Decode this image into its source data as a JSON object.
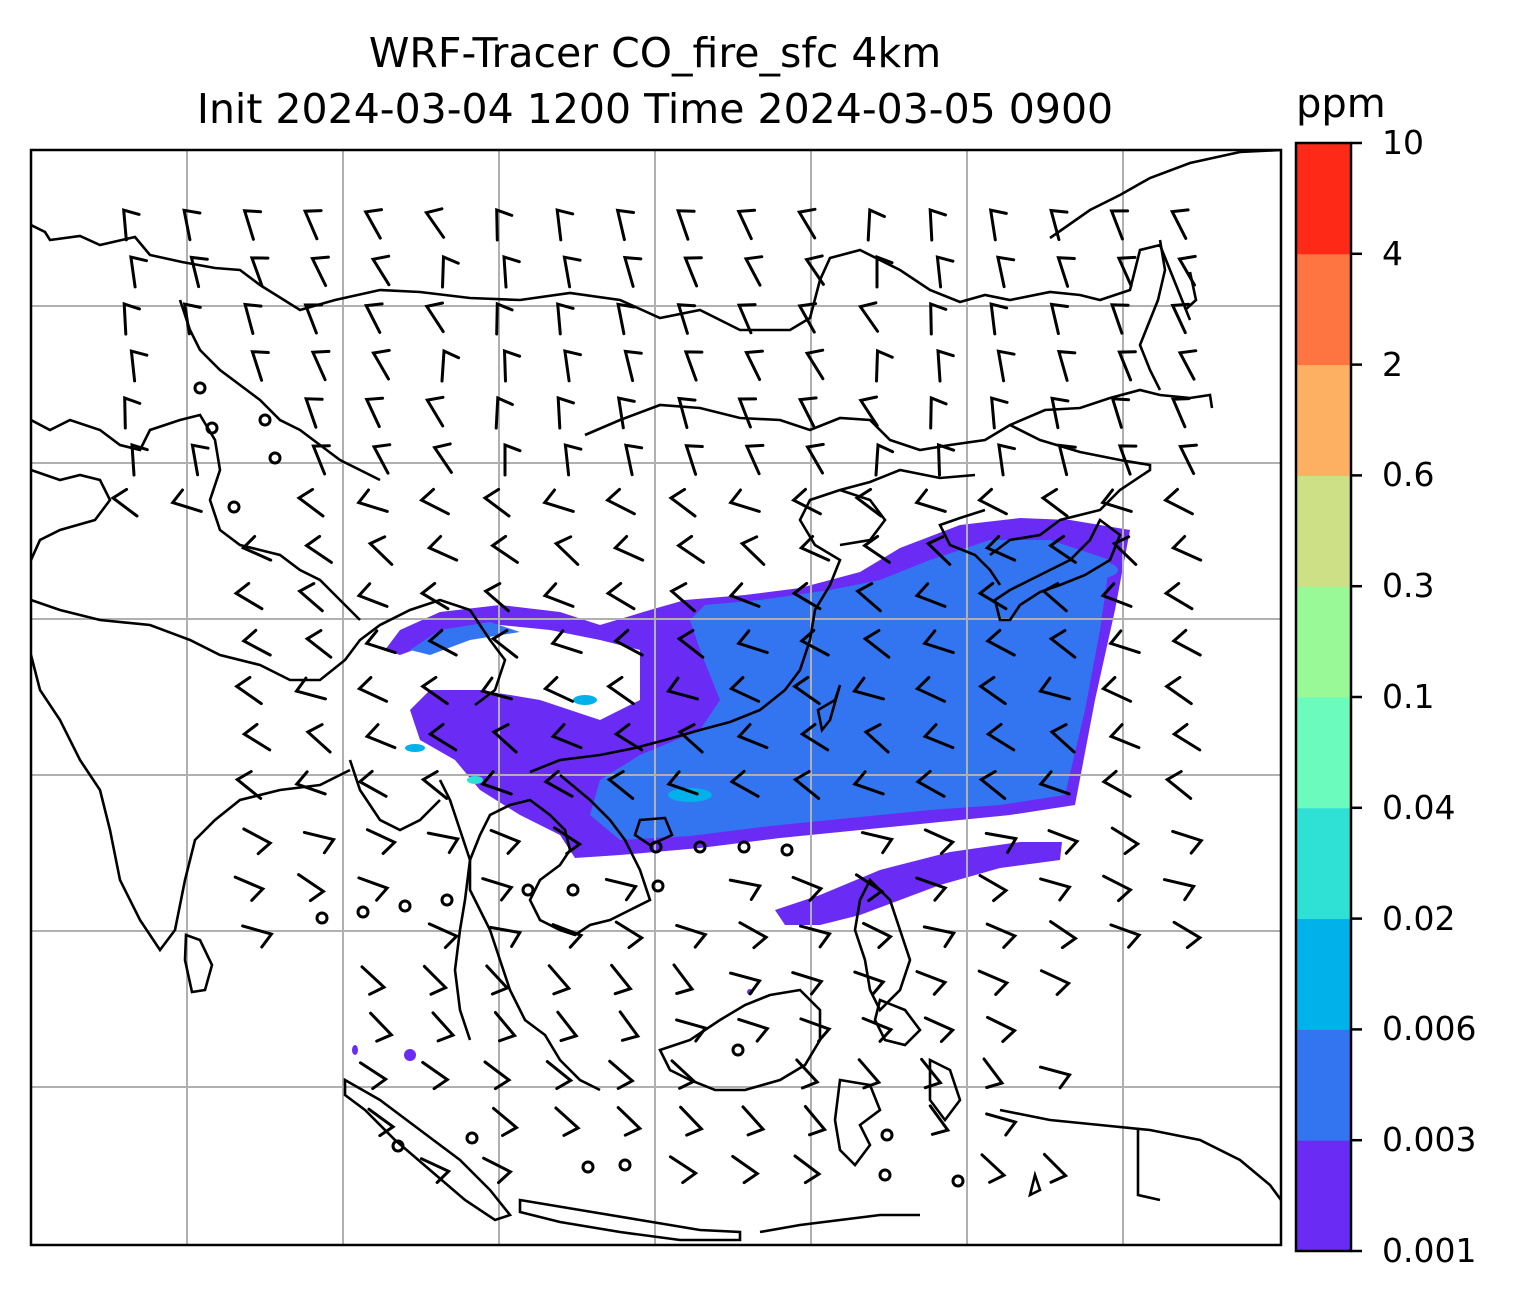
{
  "title": {
    "line1": "WRF-Tracer CO_fire_sfc 4km",
    "line2": "Init 2024-03-04 1200 Time 2024-03-05 0900"
  },
  "colorbar": {
    "unit": "ppm",
    "levels": [
      "0.001",
      "0.003",
      "0.006",
      "0.02",
      "0.04",
      "0.1",
      "0.3",
      "0.6",
      "2",
      "4",
      "10"
    ],
    "colors": [
      "#6a2cf5",
      "#3375f0",
      "#00b1ea",
      "#2fe1d4",
      "#6bfbbd",
      "#99f996",
      "#cde085",
      "#feb062",
      "#fe7541",
      "#fe2a17"
    ]
  },
  "map": {
    "plume_color_low": "#6a2cf5",
    "plume_color_mid": "#3375f0",
    "plume_color_high": "#00b1ea",
    "gridline_color": "#b0b0b0",
    "coastline_color": "#000000",
    "wind_barb_color": "#000000"
  }
}
